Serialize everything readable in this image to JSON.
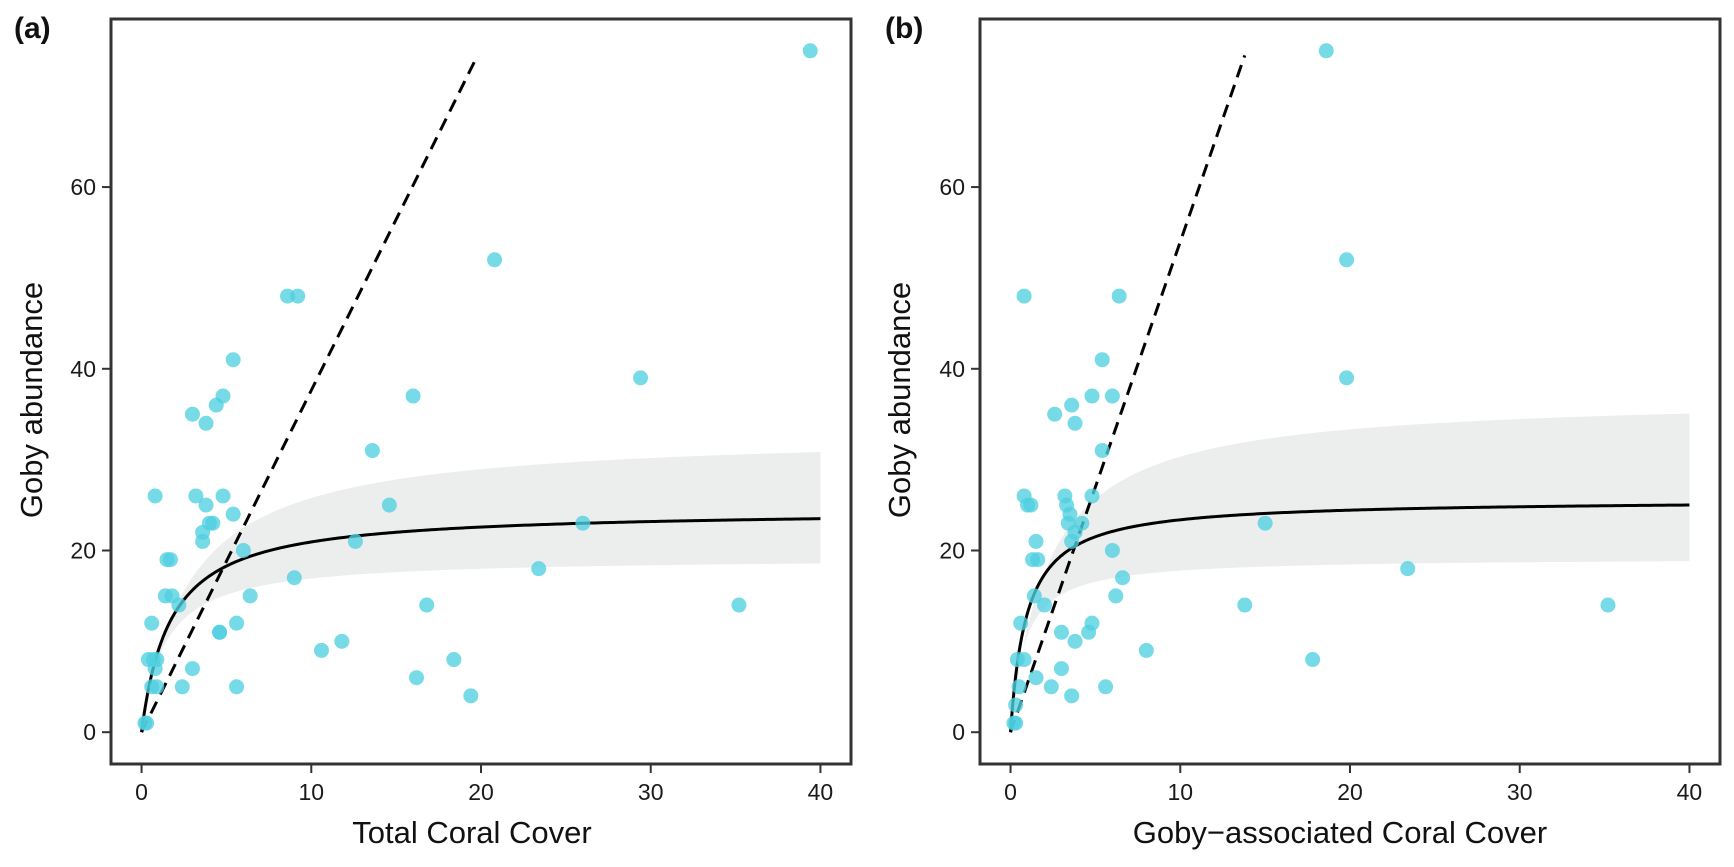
{
  "chart_data": [
    {
      "type": "scatter",
      "panel_label": "(a)",
      "xlabel": "Total Coral Cover",
      "ylabel": "Goby abundance",
      "xlim": [
        -1.8,
        41.8
      ],
      "ylim": [
        -3.5,
        78.5
      ],
      "xticks": [
        0,
        10,
        20,
        30,
        40
      ],
      "yticks": [
        0,
        20,
        40,
        60
      ],
      "grid": false,
      "legend": "none",
      "colors": {
        "points": "#4fcfe0",
        "fit": "#000000",
        "ribbon": "#eceeed",
        "frame": "#333333",
        "reference": "#000000"
      },
      "points": [
        [
          0.2,
          1
        ],
        [
          0.3,
          1
        ],
        [
          0.4,
          8
        ],
        [
          0.6,
          5
        ],
        [
          0.7,
          8
        ],
        [
          0.8,
          7
        ],
        [
          0.9,
          8
        ],
        [
          0.6,
          12
        ],
        [
          0.8,
          26
        ],
        [
          0.9,
          5
        ],
        [
          1.4,
          15
        ],
        [
          1.5,
          19
        ],
        [
          1.7,
          19
        ],
        [
          1.8,
          15
        ],
        [
          2.2,
          14
        ],
        [
          2.4,
          5
        ],
        [
          3.0,
          7
        ],
        [
          3.0,
          35
        ],
        [
          3.2,
          26
        ],
        [
          3.6,
          21
        ],
        [
          3.6,
          22
        ],
        [
          3.8,
          34
        ],
        [
          3.8,
          25
        ],
        [
          4.0,
          23
        ],
        [
          4.2,
          23
        ],
        [
          4.4,
          36
        ],
        [
          4.6,
          11
        ],
        [
          4.6,
          11
        ],
        [
          4.8,
          26
        ],
        [
          4.8,
          37
        ],
        [
          5.4,
          41
        ],
        [
          5.4,
          24
        ],
        [
          5.6,
          12
        ],
        [
          5.6,
          5
        ],
        [
          6.0,
          20
        ],
        [
          6.4,
          15
        ],
        [
          8.6,
          48
        ],
        [
          9.2,
          48
        ],
        [
          9.0,
          17
        ],
        [
          10.6,
          9
        ],
        [
          11.8,
          10
        ],
        [
          12.6,
          21
        ],
        [
          13.6,
          31
        ],
        [
          14.6,
          25
        ],
        [
          16.0,
          37
        ],
        [
          16.2,
          6
        ],
        [
          16.8,
          14
        ],
        [
          18.4,
          8
        ],
        [
          19.4,
          4
        ],
        [
          20.8,
          52
        ],
        [
          23.4,
          18
        ],
        [
          26.0,
          23
        ],
        [
          29.4,
          39
        ],
        [
          35.2,
          14
        ],
        [
          39.4,
          75
        ]
      ],
      "fit_curve": {
        "asymptote": 24.5,
        "half_saturation": 1.7,
        "x_range": [
          0,
          40
        ]
      },
      "ribbon": {
        "lower_asymptote": 19.2,
        "lower_half": 1.35,
        "upper_asymptote": 33.0,
        "upper_half": 2.8
      },
      "reference_line": {
        "x": [
          0,
          19.8
        ],
        "y": [
          0,
          74.5
        ],
        "style": "dashed"
      }
    },
    {
      "type": "scatter",
      "panel_label": "(b)",
      "xlabel": "Goby−associated Coral Cover",
      "ylabel": "Goby abundance",
      "xlim": [
        -1.8,
        41.8
      ],
      "ylim": [
        -3.5,
        78.5
      ],
      "xticks": [
        0,
        10,
        20,
        30,
        40
      ],
      "yticks": [
        0,
        20,
        40,
        60
      ],
      "grid": false,
      "legend": "none",
      "colors": {
        "points": "#4fcfe0",
        "fit": "#000000",
        "ribbon": "#eceeed",
        "frame": "#333333",
        "reference": "#000000"
      },
      "points": [
        [
          0.2,
          1
        ],
        [
          0.3,
          1
        ],
        [
          0.3,
          3
        ],
        [
          0.4,
          8
        ],
        [
          0.5,
          5
        ],
        [
          0.6,
          12
        ],
        [
          0.8,
          8
        ],
        [
          0.8,
          26
        ],
        [
          0.8,
          48
        ],
        [
          1.0,
          25
        ],
        [
          1.2,
          25
        ],
        [
          1.3,
          19
        ],
        [
          1.4,
          15
        ],
        [
          1.5,
          21
        ],
        [
          1.5,
          6
        ],
        [
          1.6,
          19
        ],
        [
          2.0,
          14
        ],
        [
          2.4,
          5
        ],
        [
          2.6,
          35
        ],
        [
          3.0,
          7
        ],
        [
          3.0,
          11
        ],
        [
          3.2,
          26
        ],
        [
          3.3,
          25
        ],
        [
          3.4,
          23
        ],
        [
          3.5,
          24
        ],
        [
          3.6,
          36
        ],
        [
          3.6,
          21
        ],
        [
          3.6,
          4
        ],
        [
          3.8,
          22
        ],
        [
          3.8,
          34
        ],
        [
          3.8,
          10
        ],
        [
          4.2,
          23
        ],
        [
          4.6,
          11
        ],
        [
          4.8,
          26
        ],
        [
          4.8,
          37
        ],
        [
          4.8,
          12
        ],
        [
          5.4,
          41
        ],
        [
          5.4,
          31
        ],
        [
          5.6,
          5
        ],
        [
          6.0,
          37
        ],
        [
          6.0,
          20
        ],
        [
          6.2,
          15
        ],
        [
          6.4,
          48
        ],
        [
          6.6,
          17
        ],
        [
          8.0,
          9
        ],
        [
          13.8,
          14
        ],
        [
          15.0,
          23
        ],
        [
          17.8,
          8
        ],
        [
          18.6,
          75
        ],
        [
          19.8,
          52
        ],
        [
          19.8,
          39
        ],
        [
          23.4,
          18
        ],
        [
          35.2,
          14
        ]
      ],
      "fit_curve": {
        "asymptote": 25.6,
        "half_saturation": 0.95,
        "x_range": [
          0,
          40
        ]
      },
      "ribbon": {
        "lower_asymptote": 19.2,
        "lower_half": 0.8,
        "upper_asymptote": 37.0,
        "upper_half": 2.2
      },
      "reference_line": {
        "x": [
          0,
          13.8
        ],
        "y": [
          0,
          74.5
        ],
        "style": "dashed"
      }
    }
  ]
}
